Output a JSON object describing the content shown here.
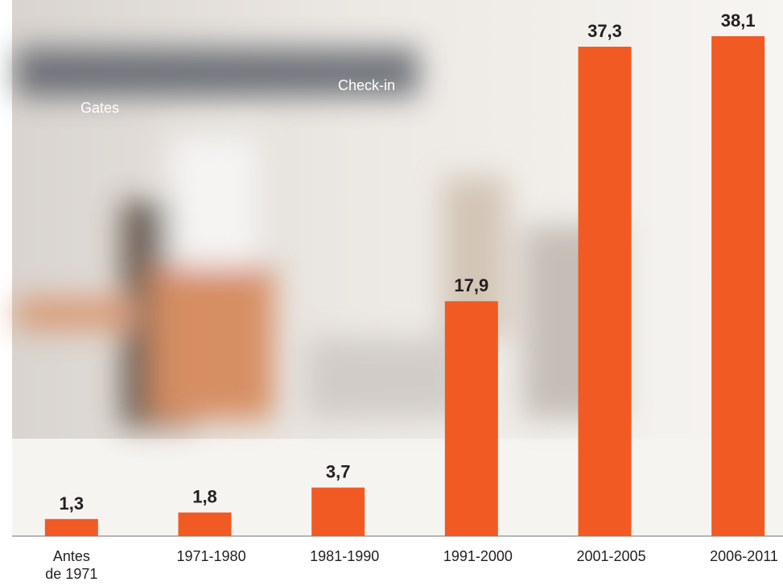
{
  "chart_data": {
    "type": "bar",
    "categories": [
      "Antes de 1971",
      "1971-1980",
      "1981-1990",
      "1991-2000",
      "2001-2005",
      "2006-2011"
    ],
    "values": [
      1.3,
      1.8,
      3.7,
      17.9,
      37.3,
      38.1
    ],
    "value_labels": [
      "1,3",
      "1,8",
      "3,7",
      "17,9",
      "37,3",
      "38,1"
    ],
    "color": "#f15a22",
    "ylim": [
      0,
      40
    ]
  }
}
